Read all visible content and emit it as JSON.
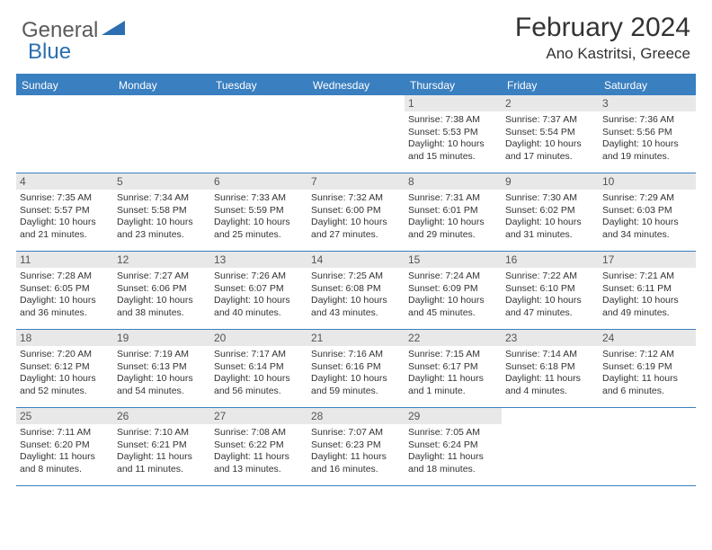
{
  "logo": {
    "text1": "General",
    "text2": "Blue"
  },
  "title": "February 2024",
  "location": "Ano Kastritsi, Greece",
  "dayNames": [
    "Sunday",
    "Monday",
    "Tuesday",
    "Wednesday",
    "Thursday",
    "Friday",
    "Saturday"
  ],
  "colors": {
    "headerBlue": "#3a7fc0",
    "dayBg": "#e8e8e8"
  },
  "weeks": [
    [
      null,
      null,
      null,
      null,
      {
        "n": "1",
        "sr": "7:38 AM",
        "ss": "5:53 PM",
        "dl": "10 hours and 15 minutes."
      },
      {
        "n": "2",
        "sr": "7:37 AM",
        "ss": "5:54 PM",
        "dl": "10 hours and 17 minutes."
      },
      {
        "n": "3",
        "sr": "7:36 AM",
        "ss": "5:56 PM",
        "dl": "10 hours and 19 minutes."
      }
    ],
    [
      {
        "n": "4",
        "sr": "7:35 AM",
        "ss": "5:57 PM",
        "dl": "10 hours and 21 minutes."
      },
      {
        "n": "5",
        "sr": "7:34 AM",
        "ss": "5:58 PM",
        "dl": "10 hours and 23 minutes."
      },
      {
        "n": "6",
        "sr": "7:33 AM",
        "ss": "5:59 PM",
        "dl": "10 hours and 25 minutes."
      },
      {
        "n": "7",
        "sr": "7:32 AM",
        "ss": "6:00 PM",
        "dl": "10 hours and 27 minutes."
      },
      {
        "n": "8",
        "sr": "7:31 AM",
        "ss": "6:01 PM",
        "dl": "10 hours and 29 minutes."
      },
      {
        "n": "9",
        "sr": "7:30 AM",
        "ss": "6:02 PM",
        "dl": "10 hours and 31 minutes."
      },
      {
        "n": "10",
        "sr": "7:29 AM",
        "ss": "6:03 PM",
        "dl": "10 hours and 34 minutes."
      }
    ],
    [
      {
        "n": "11",
        "sr": "7:28 AM",
        "ss": "6:05 PM",
        "dl": "10 hours and 36 minutes."
      },
      {
        "n": "12",
        "sr": "7:27 AM",
        "ss": "6:06 PM",
        "dl": "10 hours and 38 minutes."
      },
      {
        "n": "13",
        "sr": "7:26 AM",
        "ss": "6:07 PM",
        "dl": "10 hours and 40 minutes."
      },
      {
        "n": "14",
        "sr": "7:25 AM",
        "ss": "6:08 PM",
        "dl": "10 hours and 43 minutes."
      },
      {
        "n": "15",
        "sr": "7:24 AM",
        "ss": "6:09 PM",
        "dl": "10 hours and 45 minutes."
      },
      {
        "n": "16",
        "sr": "7:22 AM",
        "ss": "6:10 PM",
        "dl": "10 hours and 47 minutes."
      },
      {
        "n": "17",
        "sr": "7:21 AM",
        "ss": "6:11 PM",
        "dl": "10 hours and 49 minutes."
      }
    ],
    [
      {
        "n": "18",
        "sr": "7:20 AM",
        "ss": "6:12 PM",
        "dl": "10 hours and 52 minutes."
      },
      {
        "n": "19",
        "sr": "7:19 AM",
        "ss": "6:13 PM",
        "dl": "10 hours and 54 minutes."
      },
      {
        "n": "20",
        "sr": "7:17 AM",
        "ss": "6:14 PM",
        "dl": "10 hours and 56 minutes."
      },
      {
        "n": "21",
        "sr": "7:16 AM",
        "ss": "6:16 PM",
        "dl": "10 hours and 59 minutes."
      },
      {
        "n": "22",
        "sr": "7:15 AM",
        "ss": "6:17 PM",
        "dl": "11 hours and 1 minute."
      },
      {
        "n": "23",
        "sr": "7:14 AM",
        "ss": "6:18 PM",
        "dl": "11 hours and 4 minutes."
      },
      {
        "n": "24",
        "sr": "7:12 AM",
        "ss": "6:19 PM",
        "dl": "11 hours and 6 minutes."
      }
    ],
    [
      {
        "n": "25",
        "sr": "7:11 AM",
        "ss": "6:20 PM",
        "dl": "11 hours and 8 minutes."
      },
      {
        "n": "26",
        "sr": "7:10 AM",
        "ss": "6:21 PM",
        "dl": "11 hours and 11 minutes."
      },
      {
        "n": "27",
        "sr": "7:08 AM",
        "ss": "6:22 PM",
        "dl": "11 hours and 13 minutes."
      },
      {
        "n": "28",
        "sr": "7:07 AM",
        "ss": "6:23 PM",
        "dl": "11 hours and 16 minutes."
      },
      {
        "n": "29",
        "sr": "7:05 AM",
        "ss": "6:24 PM",
        "dl": "11 hours and 18 minutes."
      },
      null,
      null
    ]
  ],
  "labels": {
    "sunrise": "Sunrise:",
    "sunset": "Sunset:",
    "daylight": "Daylight:"
  }
}
